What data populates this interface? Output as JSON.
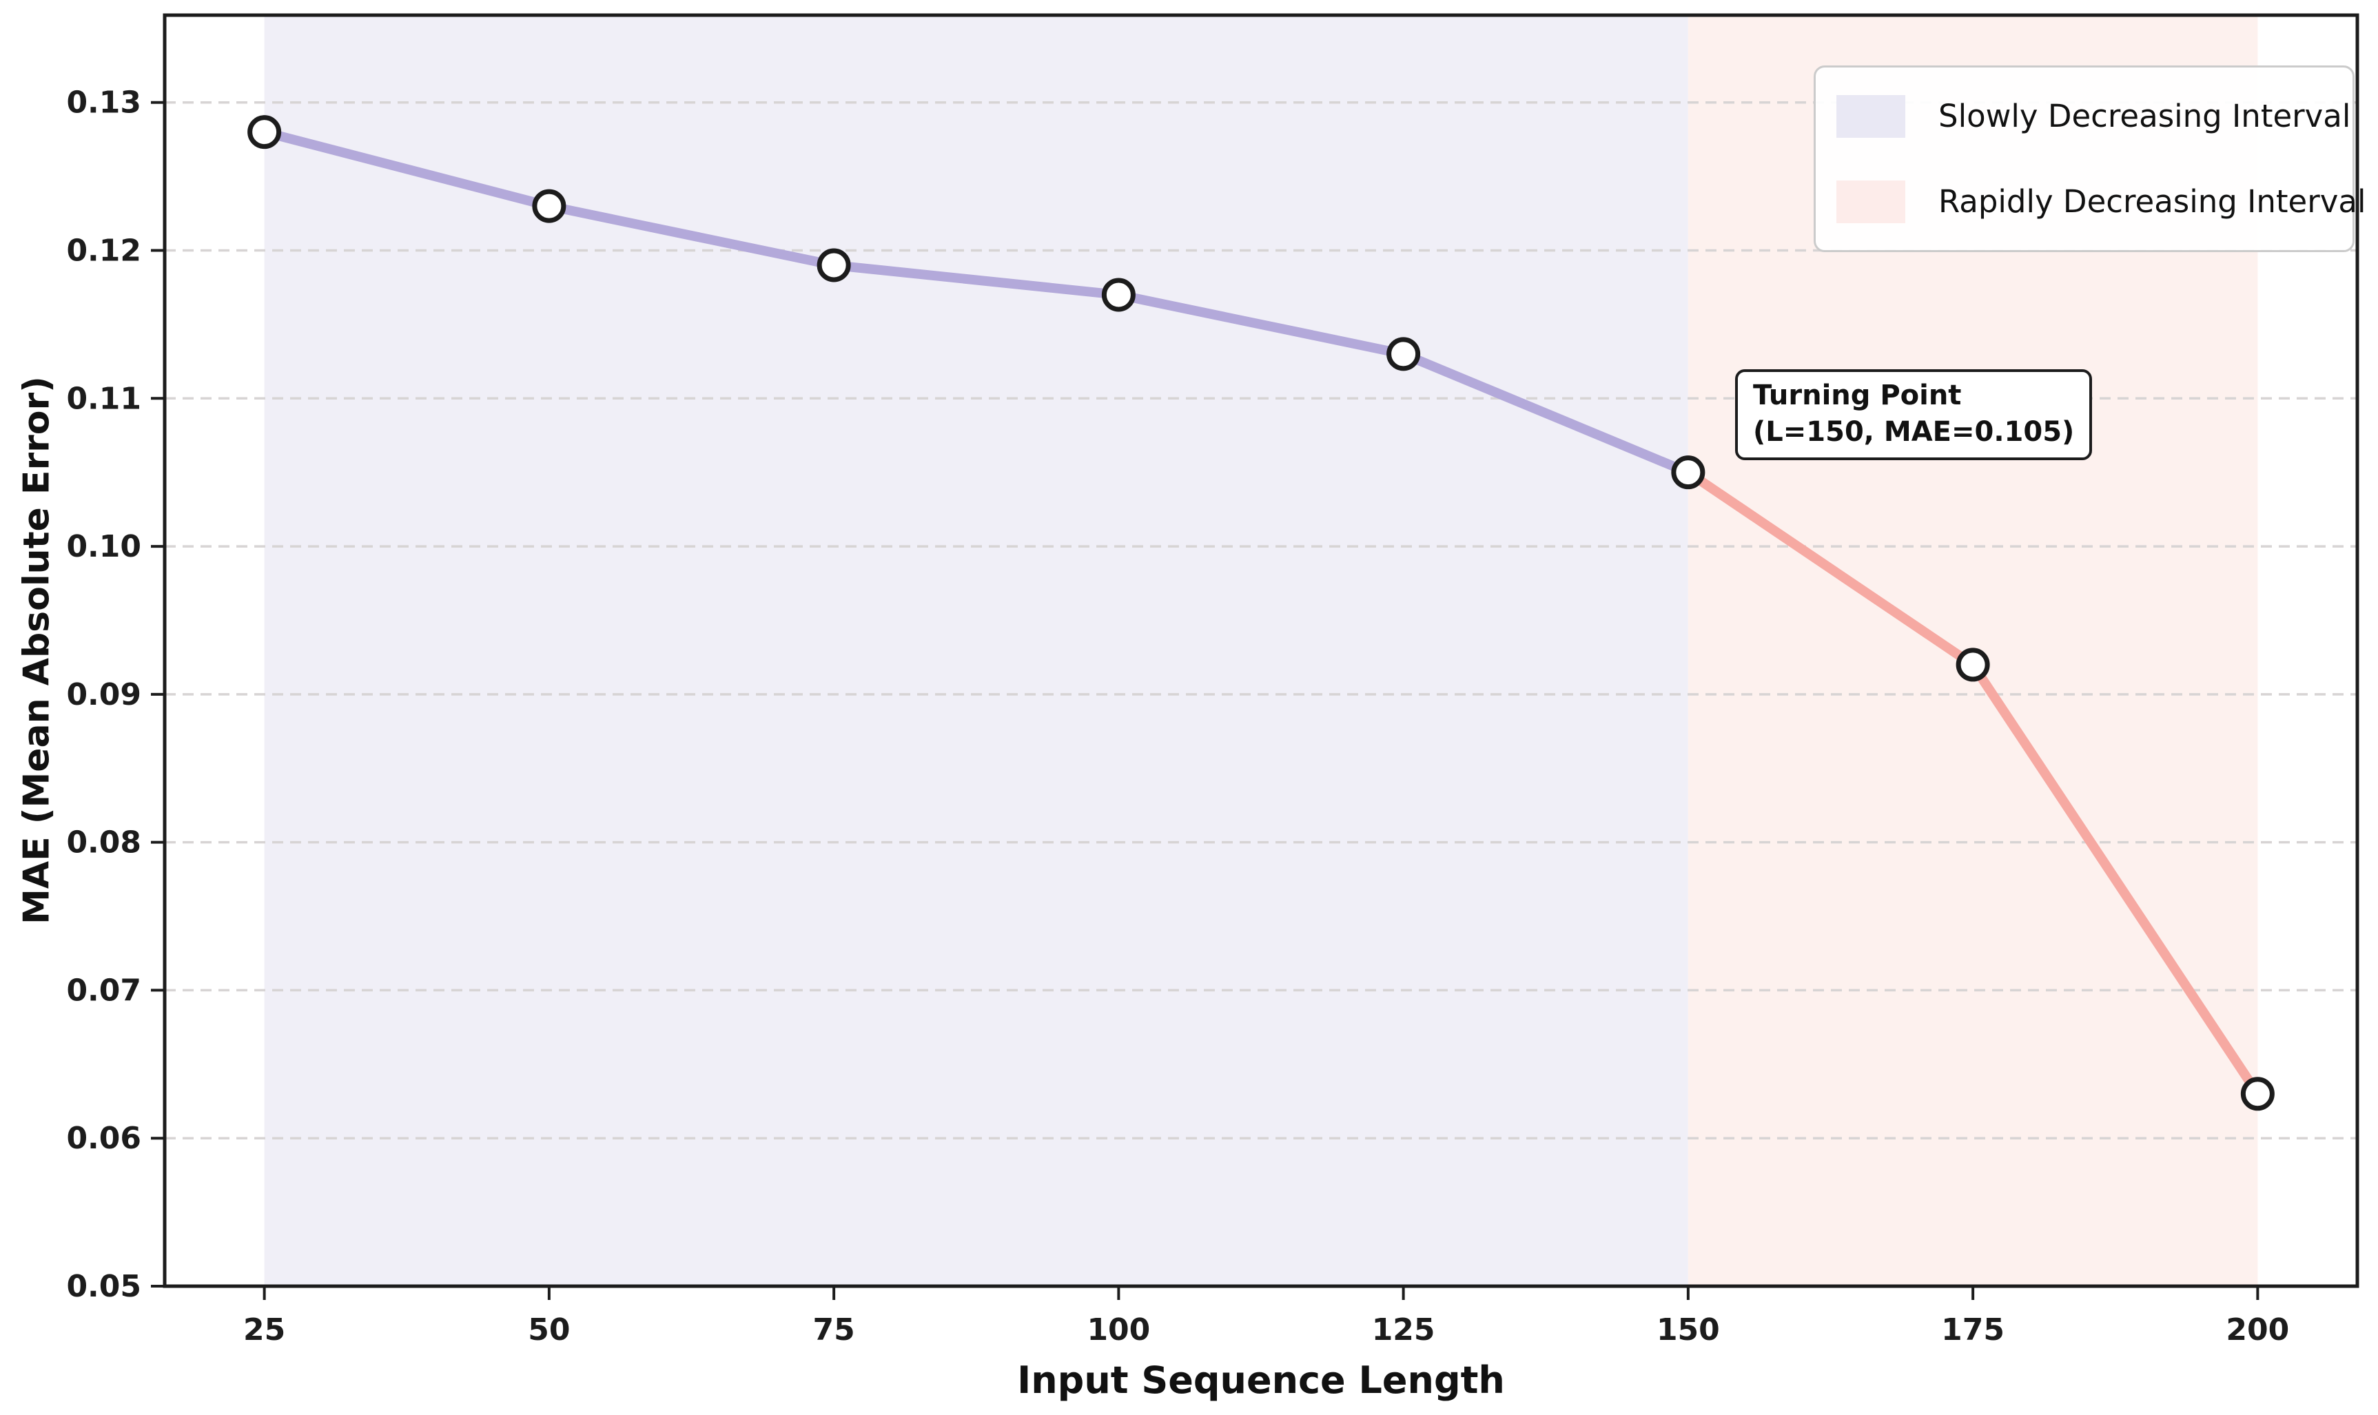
{
  "figure": {
    "background": "#ffffff"
  },
  "chart_data": {
    "type": "line",
    "title": "",
    "xlabel": "Input Sequence Length",
    "ylabel": "MAE (Mean Absolute Error)",
    "x": [
      25,
      50,
      75,
      100,
      125,
      150,
      175,
      200
    ],
    "y": [
      0.128,
      0.123,
      0.119,
      0.117,
      0.113,
      0.105,
      0.092,
      0.063
    ],
    "xlim": [
      16.25,
      208.75
    ],
    "ylim": [
      0.05,
      0.1359
    ],
    "xticks": {
      "values": [
        25,
        50,
        75,
        100,
        125,
        150,
        175,
        200
      ],
      "labels": [
        "25",
        "50",
        "75",
        "100",
        "125",
        "150",
        "175",
        "200"
      ]
    },
    "yticks": {
      "values": [
        0.05,
        0.06,
        0.07,
        0.08,
        0.09,
        0.1,
        0.11,
        0.12,
        0.13
      ],
      "labels": [
        "0.05",
        "0.06",
        "0.07",
        "0.08",
        "0.09",
        "0.10",
        "0.11",
        "0.12",
        "0.13"
      ]
    },
    "grid": {
      "axis": "y",
      "style": "dashed",
      "color": "#d7d4d4"
    },
    "segments": [
      {
        "name": "slowly-decreasing-line",
        "color": "#b3a9da",
        "from_index": 0,
        "to_index": 5
      },
      {
        "name": "rapidly-decreasing-line",
        "color": "#f6a9a2",
        "from_index": 5,
        "to_index": 7
      }
    ],
    "marker": {
      "face": "#ffffff",
      "edge": "#1c1c1c"
    },
    "regions": [
      {
        "label": "Slowly Decreasing Interval",
        "from": 25,
        "to": 150,
        "color": "#f0eff7"
      },
      {
        "label": "Rapidly Decreasing Interval",
        "from": 150,
        "to": 200,
        "color": "#fdf1ee"
      }
    ],
    "legend": {
      "position": "upper right",
      "items": [
        {
          "label": "Slowly Decreasing Interval",
          "color": "#e9e8f4"
        },
        {
          "label": "Rapidly Decreasing Interval",
          "color": "#fdecea"
        }
      ]
    },
    "annotation": {
      "line1": "Turning Point",
      "line2": "(L=150, MAE=0.105)",
      "target": {
        "x": 150,
        "y": 0.105
      }
    }
  }
}
